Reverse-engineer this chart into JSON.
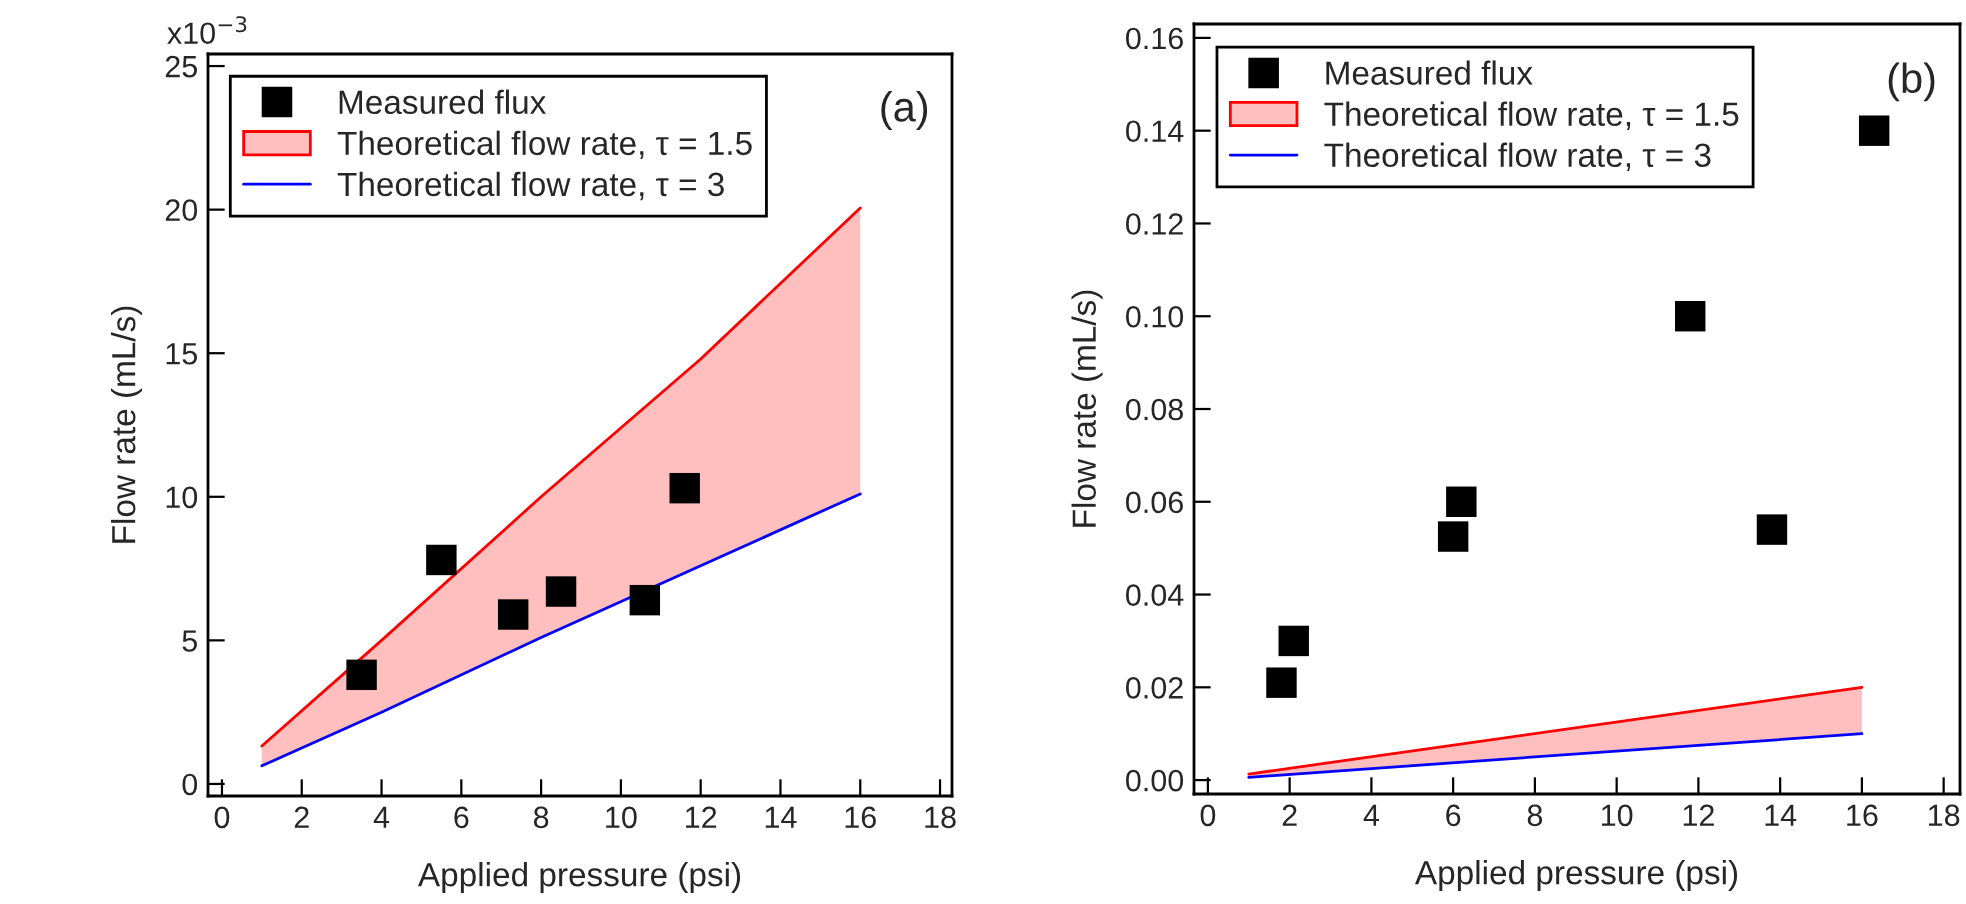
{
  "chart_data": [
    {
      "type": "scatter",
      "xlabel": "Applied pressure (psi)",
      "ylabel": "Flow rate (mL/s)",
      "annotations": [
        "(a)",
        "x10$^{−3}$"
      ],
      "xlim": [
        -0.35,
        18.3
      ],
      "xticks": [
        0,
        2,
        4,
        6,
        8,
        10,
        12,
        14,
        16,
        18
      ],
      "ylim": [
        -0.42,
        25.42
      ],
      "yticks": [
        0,
        5,
        10,
        15,
        20,
        25
      ],
      "legend": "top left",
      "grid": false,
      "series": [
        {
          "name": "Measured flux",
          "color": "#000000",
          "marker": "square",
          "x": [
            3.5,
            5.5,
            7.3,
            8.5,
            10.6,
            11.6
          ],
          "values": [
            3.8,
            7.8,
            5.9,
            6.7,
            6.4,
            10.3
          ]
        },
        {
          "name": "Theoretical flow rate, τ = 1.5",
          "type": "line",
          "color": "#ff0000",
          "x": [
            1,
            4,
            8,
            12,
            16
          ],
          "values": [
            1.32,
            5.0,
            10.0,
            14.8,
            20.06
          ],
          "lower": [
            0.63,
            2.5,
            5.1,
            7.6,
            10.1
          ],
          "upper": [
            1.32,
            5.0,
            10.0,
            14.8,
            20.06
          ]
        },
        {
          "name": "Theoretical flow rate, τ = 3",
          "type": "line",
          "color": "#0000ff",
          "x": [
            1,
            4,
            8,
            12,
            16
          ],
          "values": [
            0.63,
            2.5,
            5.1,
            7.6,
            10.1
          ]
        }
      ]
    },
    {
      "type": "scatter",
      "xlabel": "Applied pressure (psi)",
      "ylabel": "Flow rate (mL/s)",
      "annotations": [
        "(b)"
      ],
      "xlim": [
        -0.34,
        18.4
      ],
      "xticks": [
        0,
        2,
        4,
        6,
        8,
        10,
        12,
        14,
        16,
        18
      ],
      "ylim": [
        -0.003,
        0.163
      ],
      "yticks": [
        {
          "value": 0,
          "label": "0.00"
        },
        {
          "value": 0.02,
          "label": "0.02"
        },
        {
          "value": 0.04,
          "label": "0.04"
        },
        {
          "value": 0.06,
          "label": "0.06"
        },
        {
          "value": 0.08,
          "label": "0.08"
        },
        {
          "value": 0.1,
          "label": "0.10"
        },
        {
          "value": 0.12,
          "label": "0.12"
        },
        {
          "value": 0.14,
          "label": "0.14"
        },
        {
          "value": 0.16,
          "label": "0.16"
        }
      ],
      "legend": "top left",
      "grid": false,
      "series": [
        {
          "name": "Measured flux",
          "color": "#000000",
          "marker": "square",
          "x": [
            1.8,
            2.1,
            6.0,
            6.2,
            11.8,
            13.8,
            16.3
          ],
          "values": [
            0.021,
            0.03,
            0.0525,
            0.06,
            0.1,
            0.054,
            0.14
          ]
        },
        {
          "name": "Theoretical flow rate, τ = 1.5",
          "type": "line",
          "color": "#ff0000",
          "x": [
            1,
            16
          ],
          "values": [
            0.0013,
            0.02
          ],
          "lower": [
            0.0006,
            0.01
          ],
          "upper": [
            0.0013,
            0.02
          ]
        },
        {
          "name": "Theoretical flow rate, τ = 3",
          "type": "line",
          "color": "#0000ff",
          "x": [
            1,
            16
          ],
          "values": [
            0.0006,
            0.01
          ]
        }
      ]
    }
  ]
}
